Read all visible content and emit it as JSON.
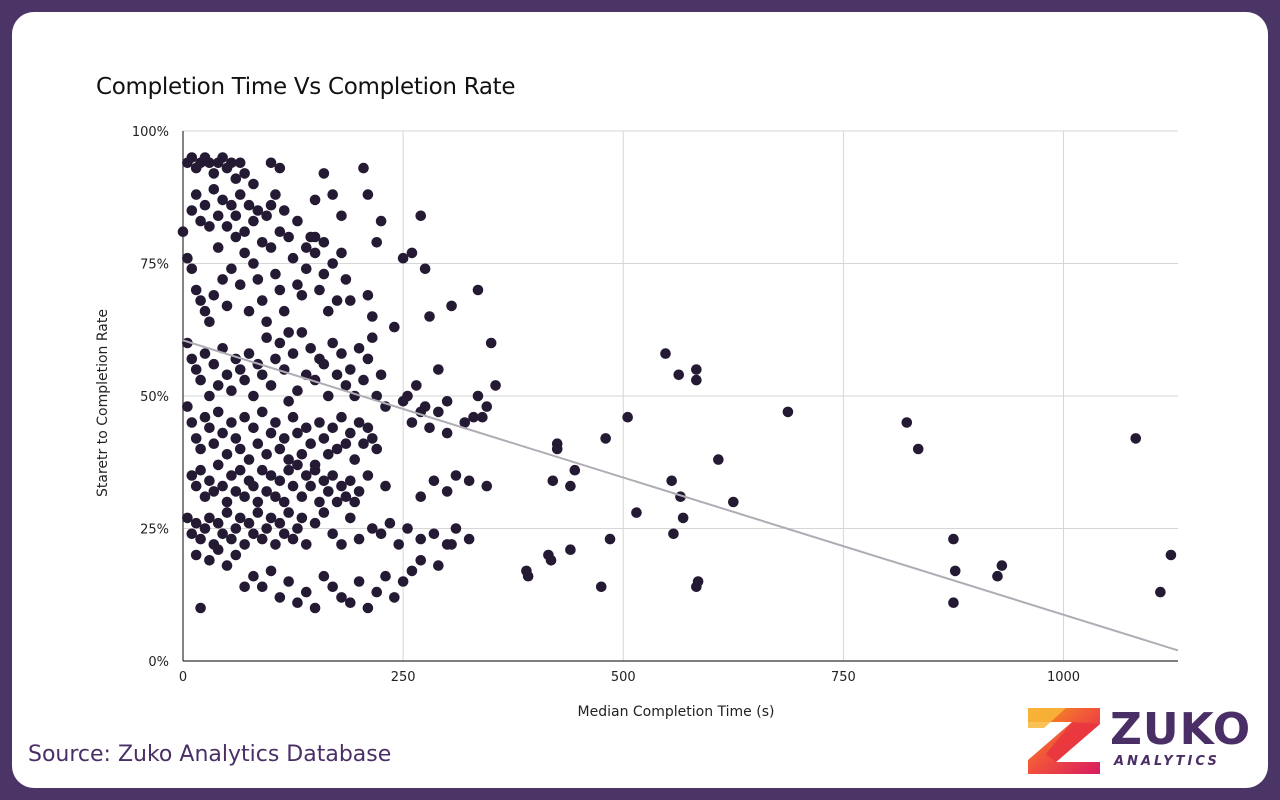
{
  "chart_data": {
    "type": "scatter",
    "title": "Completion Time Vs Completion Rate",
    "xlabel": "Median Completion Time (s)",
    "ylabel": "Staretr to Completion Rate",
    "xlim": [
      0,
      1130
    ],
    "ylim": [
      0,
      100
    ],
    "x_ticks": [
      0,
      250,
      500,
      750,
      1000
    ],
    "x_tick_labels": [
      "0",
      "250",
      "500",
      "750",
      "1000"
    ],
    "y_ticks": [
      0,
      25,
      50,
      75,
      100
    ],
    "y_tick_labels": [
      "0%",
      "25%",
      "50%",
      "75%",
      "100%"
    ],
    "grid": true,
    "legend": "none",
    "point_color": "#241a33",
    "trendline": {
      "x": [
        0,
        1130
      ],
      "y": [
        60.5,
        2.0
      ],
      "color": "#b0acb6"
    },
    "points": [
      [
        0,
        81
      ],
      [
        5,
        94
      ],
      [
        10,
        95
      ],
      [
        15,
        93
      ],
      [
        20,
        94
      ],
      [
        25,
        95
      ],
      [
        30,
        94
      ],
      [
        35,
        92
      ],
      [
        40,
        94
      ],
      [
        45,
        95
      ],
      [
        50,
        93
      ],
      [
        55,
        94
      ],
      [
        60,
        91
      ],
      [
        65,
        94
      ],
      [
        70,
        92
      ],
      [
        80,
        90
      ],
      [
        100,
        94
      ],
      [
        110,
        93
      ],
      [
        205,
        93
      ],
      [
        160,
        92
      ],
      [
        210,
        88
      ],
      [
        270,
        84
      ],
      [
        150,
        87
      ],
      [
        170,
        88
      ],
      [
        5,
        76
      ],
      [
        10,
        74
      ],
      [
        15,
        70
      ],
      [
        20,
        68
      ],
      [
        25,
        66
      ],
      [
        30,
        64
      ],
      [
        35,
        69
      ],
      [
        40,
        78
      ],
      [
        45,
        72
      ],
      [
        50,
        67
      ],
      [
        55,
        74
      ],
      [
        60,
        80
      ],
      [
        65,
        71
      ],
      [
        70,
        77
      ],
      [
        75,
        66
      ],
      [
        80,
        75
      ],
      [
        85,
        72
      ],
      [
        90,
        68
      ],
      [
        95,
        64
      ],
      [
        100,
        78
      ],
      [
        105,
        73
      ],
      [
        110,
        70
      ],
      [
        115,
        66
      ],
      [
        120,
        62
      ],
      [
        125,
        76
      ],
      [
        130,
        71
      ],
      [
        135,
        69
      ],
      [
        140,
        74
      ],
      [
        145,
        80
      ],
      [
        150,
        77
      ],
      [
        155,
        70
      ],
      [
        160,
        73
      ],
      [
        165,
        66
      ],
      [
        170,
        75
      ],
      [
        175,
        68
      ],
      [
        180,
        77
      ],
      [
        185,
        72
      ],
      [
        190,
        68
      ],
      [
        210,
        69
      ],
      [
        215,
        65
      ],
      [
        220,
        79
      ],
      [
        225,
        83
      ],
      [
        250,
        76
      ],
      [
        260,
        77
      ],
      [
        275,
        74
      ],
      [
        280,
        65
      ],
      [
        305,
        67
      ],
      [
        335,
        70
      ],
      [
        10,
        85
      ],
      [
        15,
        88
      ],
      [
        20,
        83
      ],
      [
        25,
        86
      ],
      [
        30,
        82
      ],
      [
        35,
        89
      ],
      [
        40,
        84
      ],
      [
        45,
        87
      ],
      [
        50,
        82
      ],
      [
        55,
        86
      ],
      [
        60,
        84
      ],
      [
        65,
        88
      ],
      [
        70,
        81
      ],
      [
        75,
        86
      ],
      [
        80,
        83
      ],
      [
        85,
        85
      ],
      [
        90,
        79
      ],
      [
        95,
        84
      ],
      [
        100,
        86
      ],
      [
        105,
        88
      ],
      [
        110,
        81
      ],
      [
        115,
        85
      ],
      [
        120,
        80
      ],
      [
        130,
        83
      ],
      [
        140,
        78
      ],
      [
        150,
        80
      ],
      [
        160,
        79
      ],
      [
        180,
        84
      ],
      [
        5,
        60
      ],
      [
        10,
        57
      ],
      [
        15,
        55
      ],
      [
        20,
        53
      ],
      [
        25,
        58
      ],
      [
        30,
        50
      ],
      [
        35,
        56
      ],
      [
        40,
        52
      ],
      [
        45,
        59
      ],
      [
        50,
        54
      ],
      [
        55,
        51
      ],
      [
        60,
        57
      ],
      [
        65,
        55
      ],
      [
        70,
        53
      ],
      [
        75,
        58
      ],
      [
        80,
        50
      ],
      [
        85,
        56
      ],
      [
        90,
        54
      ],
      [
        95,
        61
      ],
      [
        100,
        52
      ],
      [
        105,
        57
      ],
      [
        110,
        60
      ],
      [
        115,
        55
      ],
      [
        120,
        49
      ],
      [
        125,
        58
      ],
      [
        130,
        51
      ],
      [
        135,
        62
      ],
      [
        140,
        54
      ],
      [
        145,
        59
      ],
      [
        150,
        53
      ],
      [
        155,
        57
      ],
      [
        160,
        56
      ],
      [
        165,
        50
      ],
      [
        170,
        60
      ],
      [
        175,
        54
      ],
      [
        180,
        58
      ],
      [
        185,
        52
      ],
      [
        190,
        55
      ],
      [
        195,
        50
      ],
      [
        200,
        59
      ],
      [
        205,
        53
      ],
      [
        210,
        57
      ],
      [
        215,
        61
      ],
      [
        220,
        50
      ],
      [
        225,
        54
      ],
      [
        230,
        48
      ],
      [
        240,
        63
      ],
      [
        255,
        50
      ],
      [
        265,
        52
      ],
      [
        275,
        48
      ],
      [
        290,
        55
      ],
      [
        300,
        49
      ],
      [
        335,
        50
      ],
      [
        340,
        46
      ],
      [
        345,
        48
      ],
      [
        350,
        60
      ],
      [
        355,
        52
      ],
      [
        5,
        48
      ],
      [
        10,
        45
      ],
      [
        15,
        42
      ],
      [
        20,
        40
      ],
      [
        25,
        46
      ],
      [
        30,
        44
      ],
      [
        35,
        41
      ],
      [
        40,
        47
      ],
      [
        45,
        43
      ],
      [
        50,
        39
      ],
      [
        55,
        45
      ],
      [
        60,
        42
      ],
      [
        65,
        40
      ],
      [
        70,
        46
      ],
      [
        75,
        38
      ],
      [
        80,
        44
      ],
      [
        85,
        41
      ],
      [
        90,
        47
      ],
      [
        95,
        39
      ],
      [
        100,
        43
      ],
      [
        105,
        45
      ],
      [
        110,
        40
      ],
      [
        115,
        42
      ],
      [
        120,
        38
      ],
      [
        125,
        46
      ],
      [
        130,
        43
      ],
      [
        135,
        39
      ],
      [
        140,
        44
      ],
      [
        145,
        41
      ],
      [
        150,
        37
      ],
      [
        155,
        45
      ],
      [
        160,
        42
      ],
      [
        165,
        39
      ],
      [
        170,
        44
      ],
      [
        175,
        40
      ],
      [
        180,
        46
      ],
      [
        185,
        41
      ],
      [
        190,
        43
      ],
      [
        195,
        38
      ],
      [
        200,
        45
      ],
      [
        205,
        41
      ],
      [
        210,
        44
      ],
      [
        215,
        42
      ],
      [
        220,
        40
      ],
      [
        250,
        49
      ],
      [
        260,
        45
      ],
      [
        270,
        47
      ],
      [
        280,
        44
      ],
      [
        290,
        47
      ],
      [
        300,
        43
      ],
      [
        320,
        45
      ],
      [
        330,
        46
      ],
      [
        10,
        35
      ],
      [
        15,
        33
      ],
      [
        20,
        36
      ],
      [
        25,
        31
      ],
      [
        30,
        34
      ],
      [
        35,
        32
      ],
      [
        40,
        37
      ],
      [
        45,
        33
      ],
      [
        50,
        30
      ],
      [
        55,
        35
      ],
      [
        60,
        32
      ],
      [
        65,
        36
      ],
      [
        70,
        31
      ],
      [
        75,
        34
      ],
      [
        80,
        33
      ],
      [
        85,
        30
      ],
      [
        90,
        36
      ],
      [
        95,
        32
      ],
      [
        100,
        35
      ],
      [
        105,
        31
      ],
      [
        110,
        34
      ],
      [
        115,
        30
      ],
      [
        120,
        36
      ],
      [
        125,
        33
      ],
      [
        130,
        37
      ],
      [
        135,
        31
      ],
      [
        140,
        35
      ],
      [
        145,
        33
      ],
      [
        150,
        36
      ],
      [
        155,
        30
      ],
      [
        160,
        34
      ],
      [
        165,
        32
      ],
      [
        170,
        35
      ],
      [
        175,
        30
      ],
      [
        180,
        33
      ],
      [
        185,
        31
      ],
      [
        190,
        34
      ],
      [
        195,
        30
      ],
      [
        200,
        32
      ],
      [
        210,
        35
      ],
      [
        230,
        33
      ],
      [
        270,
        31
      ],
      [
        285,
        34
      ],
      [
        300,
        32
      ],
      [
        310,
        35
      ],
      [
        325,
        34
      ],
      [
        345,
        33
      ],
      [
        5,
        27
      ],
      [
        10,
        24
      ],
      [
        15,
        26
      ],
      [
        20,
        23
      ],
      [
        25,
        25
      ],
      [
        30,
        27
      ],
      [
        35,
        22
      ],
      [
        40,
        26
      ],
      [
        45,
        24
      ],
      [
        50,
        28
      ],
      [
        55,
        23
      ],
      [
        60,
        25
      ],
      [
        65,
        27
      ],
      [
        70,
        22
      ],
      [
        75,
        26
      ],
      [
        80,
        24
      ],
      [
        85,
        28
      ],
      [
        90,
        23
      ],
      [
        95,
        25
      ],
      [
        100,
        27
      ],
      [
        105,
        22
      ],
      [
        110,
        26
      ],
      [
        115,
        24
      ],
      [
        120,
        28
      ],
      [
        125,
        23
      ],
      [
        130,
        25
      ],
      [
        135,
        27
      ],
      [
        140,
        22
      ],
      [
        150,
        26
      ],
      [
        160,
        28
      ],
      [
        170,
        24
      ],
      [
        180,
        22
      ],
      [
        190,
        27
      ],
      [
        200,
        23
      ],
      [
        215,
        25
      ],
      [
        225,
        24
      ],
      [
        235,
        26
      ],
      [
        245,
        22
      ],
      [
        255,
        25
      ],
      [
        270,
        23
      ],
      [
        285,
        24
      ],
      [
        300,
        22
      ],
      [
        310,
        25
      ],
      [
        325,
        23
      ],
      [
        15,
        20
      ],
      [
        20,
        10
      ],
      [
        30,
        19
      ],
      [
        40,
        21
      ],
      [
        50,
        18
      ],
      [
        60,
        20
      ],
      [
        70,
        14
      ],
      [
        80,
        16
      ],
      [
        90,
        14
      ],
      [
        100,
        17
      ],
      [
        110,
        12
      ],
      [
        120,
        15
      ],
      [
        130,
        11
      ],
      [
        140,
        13
      ],
      [
        150,
        10
      ],
      [
        160,
        16
      ],
      [
        170,
        14
      ],
      [
        180,
        12
      ],
      [
        190,
        11
      ],
      [
        200,
        15
      ],
      [
        210,
        10
      ],
      [
        220,
        13
      ],
      [
        230,
        16
      ],
      [
        240,
        12
      ],
      [
        250,
        15
      ],
      [
        260,
        17
      ],
      [
        270,
        19
      ],
      [
        290,
        18
      ],
      [
        305,
        22
      ],
      [
        390,
        17
      ],
      [
        392,
        16
      ],
      [
        415,
        20
      ],
      [
        418,
        19
      ],
      [
        420,
        34
      ],
      [
        425,
        41
      ],
      [
        425,
        40
      ],
      [
        440,
        33
      ],
      [
        440,
        21
      ],
      [
        445,
        36
      ],
      [
        475,
        14
      ],
      [
        480,
        42
      ],
      [
        485,
        23
      ],
      [
        505,
        46
      ],
      [
        515,
        28
      ],
      [
        548,
        58
      ],
      [
        555,
        34
      ],
      [
        557,
        24
      ],
      [
        565,
        31
      ],
      [
        563,
        54
      ],
      [
        568,
        27
      ],
      [
        583,
        55
      ],
      [
        583,
        53
      ],
      [
        583,
        14
      ],
      [
        585,
        15
      ],
      [
        608,
        38
      ],
      [
        625,
        30
      ],
      [
        687,
        47
      ],
      [
        822,
        45
      ],
      [
        835,
        40
      ],
      [
        875,
        23
      ],
      [
        877,
        17
      ],
      [
        875,
        11
      ],
      [
        925,
        16
      ],
      [
        930,
        18
      ],
      [
        1082,
        42
      ],
      [
        1110,
        13
      ],
      [
        1122,
        20
      ]
    ]
  },
  "footer": {
    "source_text": "Source: Zuko Analytics Database",
    "brand_name": "ZUKO",
    "brand_sub": "ANALYTICS"
  }
}
